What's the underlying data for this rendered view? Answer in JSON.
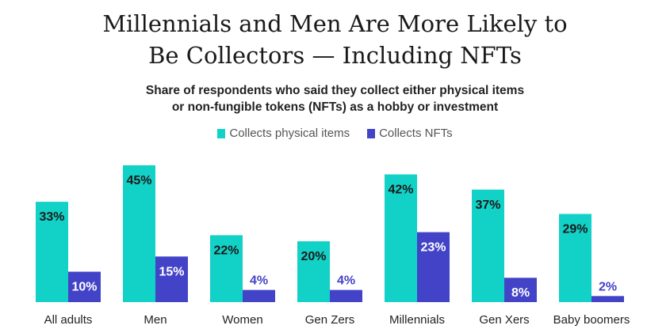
{
  "chart_data": {
    "type": "bar",
    "title_lines": [
      "Millennials and Men Are More Likely to",
      "Be Collectors — Including NFTs"
    ],
    "subtitle_lines": [
      "Share of respondents who said they collect either physical items",
      "or non-fungible tokens (NFTs) as a hobby or investment"
    ],
    "categories": [
      "All adults",
      "Men",
      "Women",
      "Gen Zers",
      "Millennials",
      "Gen Xers",
      "Baby boomers"
    ],
    "series": [
      {
        "name": "Collects physical items",
        "color": "#12d1c7",
        "values": [
          33,
          45,
          22,
          20,
          42,
          37,
          29
        ]
      },
      {
        "name": "Collects NFTs",
        "color": "#4343c8",
        "values": [
          10,
          15,
          4,
          4,
          23,
          8,
          2
        ]
      }
    ],
    "value_suffix": "%",
    "ylim": [
      0,
      45
    ],
    "grid": false,
    "legend_position": "top-center"
  }
}
